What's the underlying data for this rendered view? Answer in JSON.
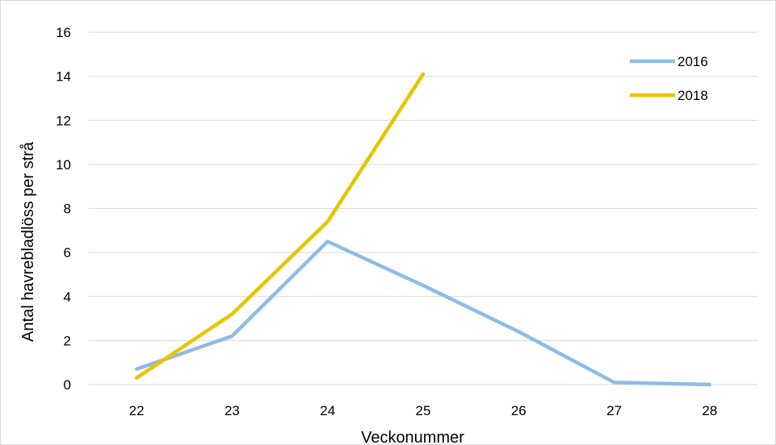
{
  "chart_data": {
    "type": "line",
    "title": "",
    "xlabel": "Veckonummer",
    "ylabel": "Antal havrebladlöss per strå",
    "categories": [
      "22",
      "23",
      "24",
      "25",
      "26",
      "27",
      "28"
    ],
    "ylim": [
      0,
      16
    ],
    "yticks": [
      "0",
      "2",
      "4",
      "6",
      "8",
      "10",
      "12",
      "14",
      "16"
    ],
    "grid": true,
    "legend_position": "top-right",
    "series": [
      {
        "name": "2016",
        "color": "#8FBCE6",
        "values": [
          0.7,
          2.2,
          6.5,
          4.5,
          2.4,
          0.1,
          0
        ]
      },
      {
        "name": "2018",
        "color": "#E8C400",
        "values": [
          0.3,
          3.2,
          7.4,
          14.1,
          null,
          null,
          null
        ]
      }
    ]
  }
}
